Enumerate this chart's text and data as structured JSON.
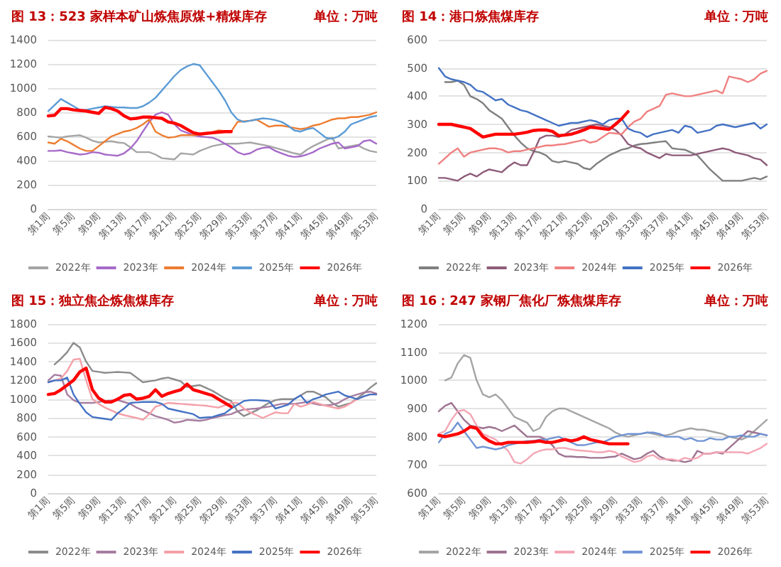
{
  "chart_data": [
    {
      "type": "line",
      "title": "图 13：523 家样本矿山炼焦原煤+精煤库存",
      "subtitle": "单位：万吨",
      "grid": "y",
      "legend": "bottom",
      "marker": "none",
      "ylim": [
        0,
        1400
      ],
      "yticks": [
        0,
        200,
        400,
        600,
        800,
        1000,
        1200,
        1400
      ],
      "categories": [
        "第1周",
        null,
        null,
        null,
        "第5周",
        null,
        null,
        null,
        "第9周",
        null,
        null,
        null,
        "第13周",
        null,
        null,
        null,
        "第17周",
        null,
        null,
        null,
        "第21周",
        null,
        null,
        null,
        "第25周",
        null,
        null,
        null,
        "第29周",
        null,
        null,
        null,
        "第33周",
        null,
        null,
        null,
        "第37周",
        null,
        null,
        null,
        "第41周",
        null,
        null,
        null,
        "第45周",
        null,
        null,
        null,
        "第49周",
        null,
        null,
        null,
        "第53周"
      ],
      "series": [
        {
          "name": "2022年",
          "color": "#a5a5a5",
          "values": [
            600,
            595,
            590,
            600,
            605,
            610,
            590,
            565,
            550,
            555,
            560,
            550,
            545,
            510,
            470,
            470,
            470,
            450,
            420,
            415,
            410,
            460,
            455,
            450,
            480,
            500,
            520,
            530,
            540,
            540,
            540,
            545,
            550,
            540,
            530,
            520,
            505,
            490,
            475,
            460,
            450,
            490,
            520,
            545,
            570,
            590,
            500,
            510,
            520,
            530,
            500,
            480,
            470
          ]
        },
        {
          "name": "2023年",
          "color": "#a66ac9",
          "values": [
            480,
            480,
            485,
            470,
            460,
            450,
            455,
            470,
            465,
            450,
            445,
            440,
            460,
            500,
            560,
            640,
            720,
            780,
            800,
            780,
            700,
            650,
            630,
            610,
            600,
            595,
            590,
            570,
            540,
            510,
            470,
            450,
            460,
            490,
            505,
            510,
            480,
            460,
            440,
            430,
            435,
            450,
            470,
            500,
            520,
            540,
            550,
            500,
            510,
            520,
            560,
            570,
            540
          ]
        },
        {
          "name": "2024年",
          "color": "#ed7d31",
          "values": [
            550,
            540,
            580,
            560,
            530,
            500,
            480,
            480,
            520,
            560,
            600,
            620,
            640,
            650,
            670,
            700,
            740,
            640,
            610,
            590,
            595,
            610,
            610,
            610,
            615,
            620,
            635,
            650,
            645,
            640,
            720,
            725,
            730,
            740,
            710,
            680,
            690,
            690,
            680,
            670,
            660,
            670,
            690,
            700,
            720,
            740,
            750,
            750,
            760,
            760,
            770,
            780,
            800
          ]
        },
        {
          "name": "2025年",
          "color": "#5b9bd5",
          "values": [
            810,
            860,
            910,
            880,
            850,
            820,
            820,
            830,
            840,
            850,
            845,
            840,
            840,
            835,
            835,
            850,
            880,
            920,
            980,
            1040,
            1100,
            1150,
            1180,
            1200,
            1190,
            1120,
            1050,
            980,
            900,
            800,
            740,
            720,
            730,
            740,
            750,
            745,
            735,
            720,
            690,
            650,
            640,
            660,
            670,
            630,
            590,
            580,
            600,
            640,
            700,
            720,
            740,
            760,
            770
          ]
        },
        {
          "name": "2026年",
          "color": "#ff0000",
          "values": [
            770,
            775,
            830,
            830,
            820,
            815,
            810,
            800,
            790,
            840,
            830,
            810,
            770,
            745,
            750,
            760,
            760,
            755,
            750,
            720,
            710,
            690,
            660,
            630,
            620,
            625,
            630,
            635,
            640,
            640,
            null,
            null,
            null,
            null,
            null,
            null,
            null,
            null,
            null,
            null,
            null,
            null,
            null,
            null,
            null,
            null,
            null,
            null,
            null,
            null,
            null,
            null,
            null
          ]
        }
      ]
    },
    {
      "type": "line",
      "title": "图 14：港口炼焦煤库存",
      "subtitle": "单位：万吨",
      "grid": "y",
      "legend": "bottom",
      "marker": "none",
      "ylim": [
        0,
        600
      ],
      "yticks": [
        0,
        100,
        200,
        300,
        400,
        500,
        600
      ],
      "categories": [
        "第1周",
        null,
        null,
        null,
        "第5周",
        null,
        null,
        null,
        "第9周",
        null,
        null,
        null,
        "第13周",
        null,
        null,
        null,
        "第17周",
        null,
        null,
        null,
        "第21周",
        null,
        null,
        null,
        "第25周",
        null,
        null,
        null,
        "第29周",
        null,
        null,
        null,
        "第33周",
        null,
        null,
        null,
        "第37周",
        null,
        null,
        null,
        "第41周",
        null,
        null,
        null,
        "第45周",
        null,
        null,
        null,
        "第49周",
        null,
        null,
        null,
        "第53周"
      ],
      "series": [
        {
          "name": "2022年",
          "color": "#7f7f7f",
          "values": [
            null,
            450,
            450,
            455,
            440,
            400,
            390,
            375,
            350,
            335,
            320,
            290,
            260,
            235,
            215,
            205,
            200,
            190,
            170,
            165,
            170,
            165,
            160,
            145,
            140,
            160,
            175,
            190,
            200,
            210,
            215,
            225,
            230,
            232,
            235,
            238,
            240,
            215,
            212,
            210,
            200,
            190,
            165,
            140,
            120,
            100,
            100,
            100,
            100,
            105,
            110,
            105,
            115
          ]
        },
        {
          "name": "2023年",
          "color": "#8e5c7a",
          "values": [
            110,
            110,
            105,
            100,
            115,
            125,
            115,
            130,
            140,
            135,
            130,
            150,
            165,
            155,
            155,
            200,
            250,
            260,
            260,
            255,
            265,
            280,
            285,
            290,
            295,
            300,
            295,
            290,
            280,
            260,
            230,
            220,
            215,
            200,
            190,
            180,
            195,
            190,
            190,
            190,
            190,
            195,
            200,
            205,
            210,
            215,
            210,
            200,
            195,
            190,
            180,
            175,
            155
          ]
        },
        {
          "name": "2024年",
          "color": "#f08080",
          "values": [
            160,
            180,
            200,
            215,
            185,
            200,
            205,
            210,
            215,
            215,
            210,
            200,
            205,
            205,
            210,
            215,
            220,
            225,
            225,
            228,
            230,
            235,
            240,
            245,
            235,
            240,
            255,
            270,
            268,
            265,
            290,
            310,
            320,
            345,
            355,
            365,
            405,
            410,
            405,
            400,
            400,
            405,
            410,
            415,
            420,
            410,
            470,
            465,
            460,
            450,
            460,
            480,
            490
          ]
        },
        {
          "name": "2025年",
          "color": "#4472c4",
          "values": [
            500,
            470,
            460,
            455,
            450,
            440,
            420,
            415,
            400,
            385,
            390,
            370,
            360,
            350,
            345,
            335,
            325,
            315,
            305,
            295,
            300,
            305,
            305,
            310,
            315,
            310,
            300,
            315,
            320,
            320,
            285,
            275,
            270,
            255,
            265,
            270,
            275,
            280,
            270,
            295,
            290,
            270,
            275,
            280,
            295,
            300,
            295,
            290,
            295,
            300,
            305,
            285,
            300
          ]
        },
        {
          "name": "2026年",
          "color": "#ff0000",
          "values": [
            300,
            300,
            300,
            295,
            290,
            285,
            270,
            255,
            260,
            265,
            265,
            265,
            265,
            268,
            272,
            278,
            280,
            280,
            275,
            260,
            262,
            265,
            272,
            280,
            290,
            288,
            285,
            282,
            300,
            320,
            345,
            null,
            null,
            null,
            null,
            null,
            null,
            null,
            null,
            null,
            null,
            null,
            null,
            null,
            null,
            null,
            null,
            null,
            null,
            null,
            null,
            null,
            null
          ]
        }
      ]
    },
    {
      "type": "line",
      "title": "图 15：独立焦企炼焦煤库存",
      "subtitle": "单位：万吨",
      "grid": "y",
      "legend": "bottom",
      "marker": "none",
      "ylim": [
        0,
        1800
      ],
      "yticks": [
        0,
        200,
        400,
        600,
        800,
        1000,
        1200,
        1400,
        1600,
        1800
      ],
      "categories": [
        "第1周",
        null,
        null,
        null,
        "第5周",
        null,
        null,
        null,
        "第9周",
        null,
        null,
        null,
        "第13周",
        null,
        null,
        null,
        "第17周",
        null,
        null,
        null,
        "第21周",
        null,
        null,
        null,
        "第25周",
        null,
        null,
        null,
        "第29周",
        null,
        null,
        null,
        "第33周",
        null,
        null,
        null,
        "第37周",
        null,
        null,
        null,
        "第41周",
        null,
        null,
        null,
        "第45周",
        null,
        null,
        null,
        "第49周",
        null,
        null,
        null,
        "第53周"
      ],
      "series": [
        {
          "name": "2022年",
          "color": "#8c8c8c",
          "values": [
            null,
            1370,
            1430,
            1500,
            1600,
            1550,
            1400,
            1300,
            1290,
            1280,
            1285,
            1290,
            1285,
            1280,
            1230,
            1180,
            1190,
            1200,
            1220,
            1230,
            1210,
            1190,
            1130,
            1140,
            1150,
            1120,
            1090,
            1050,
            1010,
            980,
            870,
            820,
            850,
            880,
            920,
            960,
            990,
            1000,
            1000,
            1000,
            1040,
            1080,
            1080,
            1050,
            1020,
            960,
            920,
            940,
            960,
            1010,
            1060,
            1120,
            1170
          ]
        },
        {
          "name": "2023年",
          "color": "#a77ca0",
          "values": [
            1200,
            1260,
            1250,
            1050,
            990,
            960,
            960,
            960,
            970,
            980,
            985,
            990,
            970,
            950,
            910,
            880,
            850,
            820,
            800,
            780,
            750,
            760,
            780,
            775,
            770,
            780,
            800,
            815,
            830,
            840,
            870,
            890,
            895,
            900,
            910,
            920,
            935,
            950,
            950,
            950,
            960,
            970,
            955,
            940,
            935,
            940,
            960,
            1000,
            1030,
            1050,
            1070,
            1080,
            1060
          ]
        },
        {
          "name": "2024年",
          "color": "#f4a0a8",
          "values": [
            1180,
            1200,
            1220,
            1300,
            1420,
            1430,
            1200,
            1000,
            950,
            910,
            880,
            850,
            830,
            815,
            800,
            780,
            840,
            920,
            940,
            960,
            955,
            950,
            945,
            940,
            935,
            930,
            920,
            910,
            935,
            960,
            960,
            900,
            860,
            830,
            800,
            830,
            860,
            850,
            850,
            950,
            920,
            940,
            970,
            950,
            930,
            915,
            900,
            920,
            960,
            1000,
            1030,
            1050,
            1050
          ]
        },
        {
          "name": "2025年",
          "color": "#4472c4",
          "values": [
            1180,
            1200,
            1200,
            1230,
            1050,
            950,
            860,
            810,
            800,
            790,
            780,
            850,
            900,
            960,
            965,
            970,
            970,
            970,
            950,
            900,
            885,
            870,
            855,
            840,
            800,
            805,
            810,
            830,
            850,
            900,
            940,
            980,
            990,
            990,
            985,
            980,
            900,
            920,
            940,
            1000,
            1040,
            960,
            1000,
            1020,
            1050,
            1065,
            1080,
            1040,
            1020,
            1000,
            1030,
            1050,
            1050
          ]
        },
        {
          "name": "2026年",
          "color": "#ff0000",
          "values": [
            1050,
            1060,
            1100,
            1150,
            1200,
            1290,
            1330,
            1100,
            1010,
            970,
            970,
            1000,
            1040,
            1050,
            1000,
            1010,
            1030,
            1100,
            1030,
            1060,
            1080,
            1100,
            1160,
            1100,
            1080,
            1060,
            1040,
            1000,
            960,
            920,
            null,
            null,
            null,
            null,
            null,
            null,
            null,
            null,
            null,
            null,
            null,
            null,
            null,
            null,
            null,
            null,
            null,
            null,
            null,
            null,
            null,
            null,
            null
          ]
        }
      ]
    },
    {
      "type": "line",
      "title": "图 16：247 家钢厂焦化厂炼焦煤库存",
      "subtitle": "单位：万吨",
      "grid": "y",
      "legend": "bottom",
      "marker": "none",
      "ylim": [
        600,
        1200
      ],
      "yticks": [
        600,
        700,
        800,
        900,
        1000,
        1100,
        1200
      ],
      "categories": [
        "第1周",
        null,
        null,
        null,
        "第5周",
        null,
        null,
        null,
        "第9周",
        null,
        null,
        null,
        "第13周",
        null,
        null,
        null,
        "第17周",
        null,
        null,
        null,
        "第21周",
        null,
        null,
        null,
        "第25周",
        null,
        null,
        null,
        "第29周",
        null,
        null,
        null,
        "第33周",
        null,
        null,
        null,
        "第37周",
        null,
        null,
        null,
        "第41周",
        null,
        null,
        null,
        "第45周",
        null,
        null,
        null,
        "第49周",
        null,
        null,
        null,
        "第53周"
      ],
      "series": [
        {
          "name": "2022年",
          "color": "#a5a5a5",
          "values": [
            null,
            1000,
            1010,
            1060,
            1090,
            1080,
            1000,
            950,
            940,
            950,
            930,
            900,
            870,
            860,
            850,
            820,
            830,
            870,
            890,
            900,
            900,
            890,
            880,
            870,
            860,
            850,
            840,
            830,
            815,
            805,
            800,
            805,
            810,
            815,
            810,
            805,
            805,
            810,
            820,
            825,
            830,
            825,
            825,
            820,
            815,
            810,
            800,
            795,
            790,
            800,
            820,
            840,
            860
          ]
        },
        {
          "name": "2023年",
          "color": "#9e7391",
          "values": [
            890,
            910,
            920,
            890,
            860,
            840,
            835,
            830,
            835,
            830,
            820,
            830,
            840,
            820,
            800,
            800,
            800,
            790,
            770,
            740,
            730,
            730,
            728,
            728,
            725,
            725,
            725,
            728,
            730,
            740,
            730,
            720,
            725,
            740,
            750,
            730,
            720,
            715,
            715,
            710,
            715,
            750,
            740,
            740,
            745,
            740,
            760,
            780,
            800,
            820,
            815,
            810,
            805
          ]
        },
        {
          "name": "2024年",
          "color": "#f4a6b5",
          "values": [
            810,
            820,
            860,
            890,
            895,
            880,
            840,
            810,
            800,
            790,
            770,
            750,
            710,
            705,
            720,
            740,
            750,
            755,
            755,
            760,
            760,
            755,
            752,
            750,
            748,
            745,
            745,
            750,
            745,
            730,
            720,
            710,
            715,
            730,
            735,
            720,
            720,
            720,
            715,
            725,
            720,
            725,
            740,
            740,
            745,
            745,
            745,
            745,
            745,
            740,
            750,
            760,
            775
          ]
        },
        {
          "name": "2025年",
          "color": "#7094d4",
          "values": [
            780,
            810,
            820,
            850,
            820,
            790,
            760,
            765,
            760,
            755,
            760,
            770,
            775,
            780,
            785,
            785,
            790,
            790,
            795,
            800,
            790,
            780,
            770,
            770,
            775,
            780,
            780,
            790,
            800,
            805,
            810,
            810,
            810,
            815,
            815,
            810,
            800,
            800,
            800,
            790,
            795,
            785,
            785,
            795,
            790,
            790,
            800,
            800,
            805,
            800,
            800,
            810,
            805
          ]
        },
        {
          "name": "2026年",
          "color": "#ff0000",
          "values": [
            805,
            800,
            805,
            810,
            820,
            835,
            830,
            800,
            785,
            775,
            775,
            780,
            780,
            780,
            780,
            782,
            785,
            780,
            780,
            785,
            790,
            785,
            790,
            800,
            790,
            785,
            780,
            775,
            775,
            775,
            775,
            null,
            null,
            null,
            null,
            null,
            null,
            null,
            null,
            null,
            null,
            null,
            null,
            null,
            null,
            null,
            null,
            null,
            null,
            null,
            null,
            null,
            null
          ]
        }
      ]
    }
  ]
}
